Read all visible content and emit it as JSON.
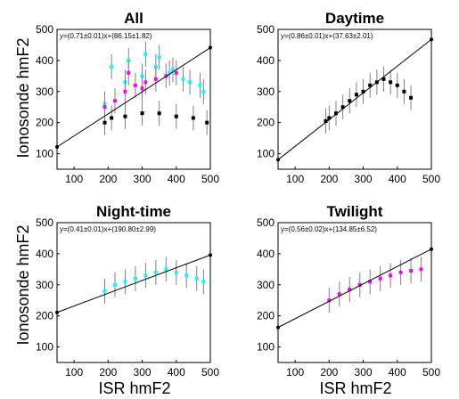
{
  "figure": {
    "ylabel": "Ionosonde hmF2",
    "xlabel": "ISR hmF2"
  },
  "chart_data": [
    {
      "type": "scatter",
      "title": "All",
      "equation": "y=(0.71±0.01)x+(86.15±1.82)",
      "xlim": [
        50,
        500
      ],
      "ylim": [
        50,
        500
      ],
      "xticks": [
        100,
        200,
        300,
        400,
        500
      ],
      "yticks": [
        100,
        200,
        300,
        400,
        500
      ],
      "grid": false,
      "fit": {
        "slope": 0.71,
        "intercept": 86.15
      },
      "series": [
        {
          "color": "#00ffff",
          "x": [
            190,
            250,
            300,
            340,
            380,
            420,
            470,
            210,
            260,
            310,
            350,
            390,
            440,
            480
          ],
          "y": [
            260,
            330,
            350,
            380,
            360,
            340,
            320,
            380,
            400,
            420,
            410,
            370,
            330,
            300
          ]
        },
        {
          "color": "#ff00ff",
          "x": [
            190,
            220,
            250,
            280,
            310,
            340,
            370,
            400,
            260,
            300
          ],
          "y": [
            250,
            270,
            300,
            320,
            330,
            340,
            350,
            360,
            360,
            310
          ]
        },
        {
          "color": "#000000",
          "x": [
            190,
            210,
            250,
            300,
            350,
            400,
            450,
            490
          ],
          "y": [
            200,
            215,
            220,
            230,
            230,
            220,
            215,
            200
          ]
        }
      ]
    },
    {
      "type": "scatter",
      "title": "Daytime",
      "equation": "y=(0.86±0.01)x+(37.63±2.01)",
      "xlim": [
        50,
        500
      ],
      "ylim": [
        50,
        500
      ],
      "xticks": [
        100,
        200,
        300,
        400,
        500
      ],
      "yticks": [
        100,
        200,
        300,
        400,
        500
      ],
      "grid": false,
      "fit": {
        "slope": 0.86,
        "intercept": 37.63
      },
      "series": [
        {
          "color": "#000000",
          "x": [
            190,
            200,
            220,
            240,
            260,
            280,
            300,
            320,
            340,
            360,
            380,
            400,
            420,
            440
          ],
          "y": [
            205,
            215,
            230,
            250,
            270,
            290,
            300,
            320,
            330,
            340,
            330,
            320,
            300,
            280
          ]
        }
      ]
    },
    {
      "type": "scatter",
      "title": "Night-time",
      "equation": "y=(0.41±0.01)x+(190.80±2.99)",
      "xlim": [
        50,
        500
      ],
      "ylim": [
        50,
        500
      ],
      "xticks": [
        100,
        200,
        300,
        400,
        500
      ],
      "yticks": [
        100,
        200,
        300,
        400,
        500
      ],
      "grid": false,
      "fit": {
        "slope": 0.41,
        "intercept": 190.8
      },
      "series": [
        {
          "color": "#00ffff",
          "x": [
            190,
            220,
            250,
            280,
            310,
            340,
            370,
            400,
            430,
            460,
            480
          ],
          "y": [
            280,
            300,
            310,
            320,
            330,
            340,
            350,
            340,
            330,
            320,
            310
          ]
        }
      ]
    },
    {
      "type": "scatter",
      "title": "Twilight",
      "equation": "y=(0.56±0.02)x+(134.85±6.52)",
      "xlim": [
        50,
        500
      ],
      "ylim": [
        50,
        500
      ],
      "xticks": [
        100,
        200,
        300,
        400,
        500
      ],
      "yticks": [
        100,
        200,
        300,
        400,
        500
      ],
      "grid": false,
      "fit": {
        "slope": 0.56,
        "intercept": 134.85
      },
      "series": [
        {
          "color": "#ff00ff",
          "x": [
            200,
            230,
            260,
            290,
            320,
            350,
            380,
            410,
            440,
            470
          ],
          "y": [
            250,
            270,
            285,
            300,
            310,
            320,
            330,
            340,
            345,
            350
          ]
        }
      ]
    }
  ]
}
